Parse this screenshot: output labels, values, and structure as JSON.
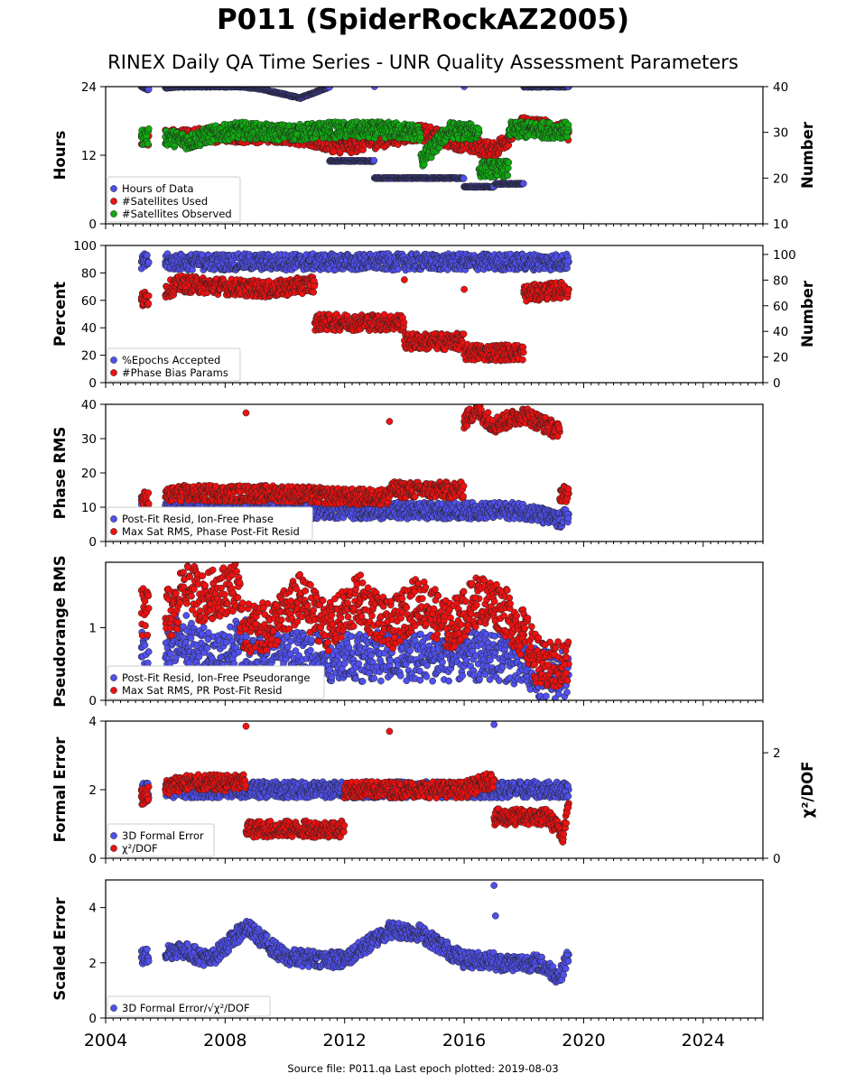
{
  "title": "P011 (SpiderRockAZ2005)",
  "subtitle": "RINEX Daily QA Time Series - UNR Quality Assessment Parameters",
  "footer": "Source file: P011.qa Last epoch plotted: 2019-08-03",
  "colors": {
    "blue": "#5050ee",
    "red": "#ee1111",
    "green": "#11aa11"
  },
  "chart_data": {
    "type": "scatter",
    "x_axis": {
      "range": [
        2004,
        2026
      ],
      "ticks": [
        "2004",
        "2008",
        "2012",
        "2016",
        "2020",
        "2024"
      ]
    },
    "panels": [
      {
        "ylabel": "Hours",
        "ylim": [
          0,
          24
        ],
        "yticks": [
          "0",
          "12",
          "24"
        ],
        "y2label": "Number",
        "y2lim": [
          10,
          40
        ],
        "y2ticks": [
          "10",
          "20",
          "30",
          "40"
        ],
        "legend": "lower-left",
        "series": [
          {
            "name": "Hours of Data",
            "color": "blue",
            "axis": "left",
            "x": [
              2005.2,
              2005.4,
              2006.5,
              2008.5,
              2009.2,
              2010.5,
              2011.5,
              2012.0,
              2013.0,
              2014.6,
              2016.0,
              2017.0,
              2017.05,
              2018.0,
              2019.5
            ],
            "y": [
              24,
              23.5,
              24,
              24,
              23.6,
              22,
              24,
              11,
              24,
              8,
              24,
              6.5,
              7,
              24,
              24
            ]
          },
          {
            "name": "#Satellites Used",
            "color": "red",
            "axis": "right",
            "x": [
              2005.2,
              2006.5,
              2008.0,
              2010.0,
              2012.0,
              2014.5,
              2017.0,
              2018.0,
              2019.5
            ],
            "y": [
              29,
              29,
              29.5,
              29.5,
              27,
              30,
              26,
              32,
              30
            ]
          },
          {
            "name": "#Satellites Observed",
            "color": "green",
            "axis": "right",
            "x": [
              2005.2,
              2006.0,
              2006.8,
              2007.5,
              2008.5,
              2009.5,
              2010.5,
              2011.5,
              2012.5,
              2013.5,
              2014.5,
              2014.6,
              2015.5,
              2016.5,
              2017.0,
              2017.5,
              2018.5,
              2019.5
            ],
            "y": [
              29,
              29,
              28,
              29.5,
              30.5,
              30,
              30,
              30.5,
              30.5,
              30.5,
              30,
              24,
              30.5,
              30,
              22,
              30.5,
              30.5,
              30.5
            ]
          }
        ]
      },
      {
        "ylabel": "Percent",
        "ylim": [
          0,
          100
        ],
        "yticks": [
          "0",
          "20",
          "40",
          "60",
          "80",
          "100"
        ],
        "y2label": "Number",
        "y2ticks": [
          "0",
          "20",
          "40",
          "60",
          "80",
          "100"
        ],
        "legend": "lower-left",
        "series": [
          {
            "name": "%Epochs Accepted",
            "color": "blue",
            "x": [
              2005.2,
              2006.0,
              2008.0,
              2010.0,
              2012.0,
              2014.0,
              2016.0,
              2018.0,
              2019.5
            ],
            "y": [
              88,
              88,
              88,
              88,
              88,
              88,
              88,
              88,
              88
            ]
          },
          {
            "name": "#Phase Bias Params",
            "color": "red",
            "x": [
              2005.2,
              2006.5,
              2008.0,
              2009.5,
              2011.0,
              2012.0,
              2014.0,
              2014.5,
              2016.0,
              2017.0,
              2018.0,
              2019.5
            ],
            "y": [
              60,
              72,
              70,
              68,
              72,
              44,
              75,
              30,
              68,
              22,
              65,
              68
            ]
          }
        ]
      },
      {
        "ylabel": "Phase RMS",
        "ylim": [
          0,
          40
        ],
        "yticks": [
          "0",
          "10",
          "20",
          "30",
          "40"
        ],
        "legend": "lower-left",
        "series": [
          {
            "name": "Post-Fit Resid, Ion-Free Phase",
            "color": "blue",
            "x": [
              2005.2,
              2006.0,
              2008.0,
              2010.0,
              2012.0,
              2014.0,
              2016.0,
              2018.0,
              2019.2,
              2019.5
            ],
            "y": [
              9,
              9,
              9,
              9,
              9,
              9,
              9,
              9,
              6,
              8
            ]
          },
          {
            "name": "Max Sat RMS, Phase Post-Fit Resid",
            "color": "red",
            "x": [
              2005.2,
              2006.5,
              2008.7,
              2010.0,
              2012.0,
              2013.5,
              2015.0,
              2016.0,
              2016.4,
              2017.0,
              2018.0,
              2019.2,
              2019.5
            ],
            "y": [
              12,
              14,
              37.5,
              14,
              13,
              35,
              15,
              35,
              38.5,
              34,
              37,
              32,
              14
            ]
          }
        ]
      },
      {
        "ylabel": "Pseudorange RMS",
        "ylim": [
          0,
          1.9
        ],
        "yticks": [
          "0",
          "1"
        ],
        "legend": "lower-left",
        "series": [
          {
            "name": "Post-Fit Resid, Ion-Free Pseudorange",
            "color": "blue",
            "x": [
              2005.2,
              2006.5,
              2007.5,
              2008.5,
              2010.0,
              2012.0,
              2014.0,
              2016.0,
              2017.5,
              2018.5,
              2019.5
            ],
            "y": [
              0.6,
              0.9,
              0.6,
              0.8,
              0.6,
              0.6,
              0.6,
              0.6,
              0.6,
              0.35,
              0.35
            ]
          },
          {
            "name": "Max Sat RMS, PR Post-Fit Resid",
            "color": "red",
            "x": [
              2005.2,
              2006.5,
              2007.2,
              2008.5,
              2009.5,
              2010.5,
              2011.5,
              2012.5,
              2013.5,
              2014.5,
              2015.5,
              2016.5,
              2017.2,
              2018.0,
              2018.6,
              2019.5
            ],
            "y": [
              1.2,
              1.75,
              1.4,
              1.6,
              1.0,
              1.4,
              1.0,
              1.4,
              1.0,
              1.4,
              1.0,
              1.4,
              1.3,
              0.9,
              0.45,
              0.5
            ]
          }
        ]
      },
      {
        "ylabel": "Formal Error",
        "ylim": [
          0,
          4
        ],
        "yticks": [
          "0",
          "2",
          "4"
        ],
        "y2label": "χ²/DOF",
        "y2ticks": [
          "0",
          "2"
        ],
        "legend": "lower-left",
        "series": [
          {
            "name": "3D Formal Error",
            "color": "blue",
            "x": [
              2005.2,
              2006.0,
              2008.0,
              2010.0,
              2012.0,
              2014.0,
              2016.0,
              2017.0,
              2018.0,
              2019.5
            ],
            "y": [
              2,
              2,
              2,
              2,
              2,
              2,
              2,
              3.9,
              2,
              2
            ]
          },
          {
            "name": "χ²/DOF",
            "color": "red",
            "x": [
              2005.2,
              2006.5,
              2008.7,
              2009.5,
              2012.0,
              2013.5,
              2016.0,
              2017.0,
              2018.8,
              2019.3,
              2019.5
            ],
            "y": [
              1.8,
              2.2,
              3.85,
              0.85,
              2.0,
              3.7,
              2.0,
              2.3,
              1.2,
              0.7,
              1.6
            ]
          }
        ]
      },
      {
        "ylabel": "Scaled Error",
        "ylim": [
          0,
          5
        ],
        "yticks": [
          "0",
          "2",
          "4"
        ],
        "legend": "lower-left",
        "series": [
          {
            "name": "3D Formal Error/√χ²/DOF",
            "color": "blue",
            "x": [
              2005.2,
              2006.5,
              2007.5,
              2008.7,
              2010.0,
              2012.0,
              2013.5,
              2014.5,
              2016.0,
              2017.0,
              2017.05,
              2018.5,
              2019.2,
              2019.5
            ],
            "y": [
              2.2,
              2.5,
              2.1,
              3.3,
              2.2,
              2.1,
              3.2,
              3.1,
              2.1,
              4.8,
              3.7,
              2.0,
              1.5,
              2.3
            ]
          }
        ]
      }
    ]
  }
}
